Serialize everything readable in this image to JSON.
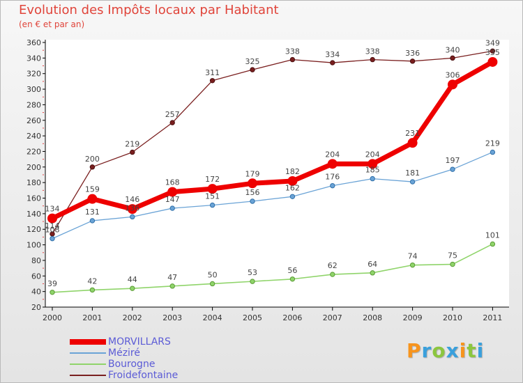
{
  "chart_data": {
    "type": "line",
    "title": "Evolution des Impôts locaux par Habitant",
    "subtitle": "(en € et par an)",
    "x": [
      "2000",
      "2001",
      "2002",
      "2003",
      "2004",
      "2005",
      "2006",
      "2007",
      "2008",
      "2009",
      "2010",
      "2011"
    ],
    "yticks": [
      20,
      40,
      60,
      80,
      100,
      120,
      140,
      160,
      180,
      200,
      220,
      240,
      260,
      280,
      300,
      320,
      340,
      360
    ],
    "ylim": [
      20,
      360
    ],
    "grid": false,
    "legend_position": "bottom-left",
    "series": [
      {
        "name": "Froidefontaine",
        "color": "#7a1f1f",
        "values": [
          114,
          200,
          219,
          257,
          311,
          325,
          338,
          334,
          338,
          336,
          340,
          349
        ]
      },
      {
        "name": "Bourogne",
        "color": "#8fd46a",
        "values": [
          39,
          42,
          44,
          47,
          50,
          53,
          56,
          62,
          64,
          74,
          75,
          101
        ]
      },
      {
        "name": "Méziré",
        "color": "#6aa3d6",
        "values": [
          108,
          131,
          136,
          147,
          151,
          156,
          162,
          176,
          185,
          181,
          197,
          219
        ]
      },
      {
        "name": "MORVILLARS",
        "color": "#ee0000",
        "values": [
          134,
          159,
          146,
          168,
          172,
          179,
          182,
          204,
          204,
          231,
          306,
          335
        ]
      }
    ],
    "legend_order": [
      "MORVILLARS",
      "Méziré",
      "Bourogne",
      "Froidefontaine"
    ]
  },
  "brand": {
    "letters": [
      "P",
      "r",
      "o",
      "x",
      "i",
      "t",
      "i"
    ],
    "colors": [
      "#f7941d",
      "#3aa0dc",
      "#8cc63f",
      "#3aa0dc",
      "#f7941d",
      "#8cc63f",
      "#3aa0dc"
    ]
  }
}
